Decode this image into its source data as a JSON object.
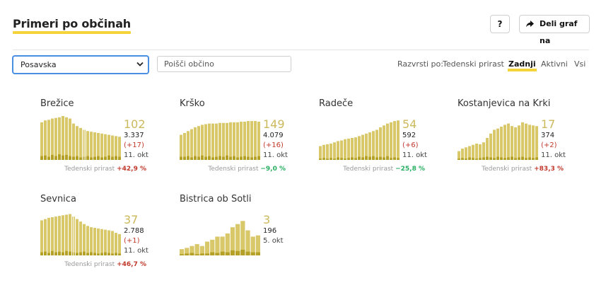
{
  "header": {
    "title": "Primeri po občinah",
    "help_label": "?",
    "share_label": "Deli graf na"
  },
  "filters": {
    "region_selected": "Posavska",
    "search_placeholder": "Poišči občino"
  },
  "sort": {
    "label": "Razvrsti po:",
    "options": [
      "Tedenski prirast",
      "Zadnji",
      "Aktivni",
      "Vsi"
    ],
    "active": "Zadnji"
  },
  "colors": {
    "bar_main": "#d9c86a",
    "bar_daily": "#b3a024",
    "accent": "#f5d33a",
    "positive": "#c0392b",
    "negative": "#27ae60"
  },
  "municipalities": [
    {
      "name": "Brežice",
      "latest": "102",
      "total": "3.337",
      "delta": "(+17)",
      "date": "11. okt",
      "growth_label": "Tedenski prirast",
      "growth": "+42,9 %",
      "growth_sign": "pos",
      "active_series": [
        60,
        63,
        64,
        66,
        67,
        68,
        70,
        68,
        66,
        58,
        54,
        51,
        48,
        46,
        45,
        44,
        43,
        42,
        41,
        40,
        39,
        38,
        37
      ],
      "daily_series": [
        6,
        7,
        5,
        8,
        6,
        9,
        7,
        8,
        6,
        5,
        6,
        4,
        5,
        6,
        4,
        5,
        6,
        4,
        5,
        7,
        5,
        6,
        5
      ],
      "highlight_index": 12
    },
    {
      "name": "Krško",
      "latest": "149",
      "total": "4.079",
      "delta": "(+16)",
      "date": "11. okt",
      "growth_label": "Tedenski prirast",
      "growth": "−9,0 %",
      "growth_sign": "neg",
      "active_series": [
        40,
        43,
        46,
        49,
        52,
        54,
        56,
        57,
        58,
        58,
        58,
        59,
        59,
        59,
        60,
        60,
        60,
        61,
        61,
        62,
        62,
        62,
        61
      ],
      "daily_series": [
        5,
        5,
        6,
        4,
        6,
        5,
        7,
        5,
        6,
        4,
        5,
        6,
        5,
        7,
        5,
        6,
        4,
        5,
        6,
        5,
        4,
        5,
        6
      ],
      "highlight_index": null
    },
    {
      "name": "Radeče",
      "latest": "54",
      "total": "592",
      "delta": "(+6)",
      "date": "11. okt",
      "growth_label": "Tedenski prirast",
      "growth": "−25,8 %",
      "growth_sign": "neg",
      "active_series": [
        22,
        24,
        25,
        26,
        28,
        30,
        31,
        33,
        34,
        35,
        36,
        38,
        40,
        42,
        44,
        46,
        48,
        52,
        55,
        58,
        60,
        62,
        63
      ],
      "daily_series": [
        2,
        3,
        2,
        3,
        2,
        4,
        3,
        2,
        3,
        4,
        3,
        5,
        4,
        6,
        5,
        6,
        4,
        5,
        4,
        6,
        3,
        4,
        3
      ],
      "highlight_index": null
    },
    {
      "name": "Kostanjevica na Krki",
      "latest": "17",
      "total": "374",
      "delta": "(+2)",
      "date": "11. okt",
      "growth_label": "Tedenski prirast",
      "growth": "+83,3 %",
      "growth_sign": "pos",
      "active_series": [
        14,
        18,
        20,
        22,
        24,
        26,
        25,
        28,
        35,
        42,
        48,
        50,
        53,
        56,
        58,
        54,
        52,
        55,
        60,
        58,
        56,
        55,
        54
      ],
      "daily_series": [
        2,
        3,
        2,
        4,
        3,
        2,
        3,
        4,
        5,
        4,
        3,
        5,
        4,
        3,
        4,
        5,
        3,
        4,
        5,
        3,
        4,
        3,
        4
      ],
      "highlight_index": null
    },
    {
      "name": "Sevnica",
      "latest": "37",
      "total": "2.788",
      "delta": "(+1)",
      "date": "11. okt",
      "growth_label": "Tedenski prirast",
      "growth": "+46,7 %",
      "growth_sign": "pos",
      "active_series": [
        56,
        58,
        60,
        61,
        62,
        63,
        64,
        65,
        66,
        62,
        58,
        54,
        50,
        47,
        45,
        44,
        43,
        42,
        41,
        40,
        39,
        36,
        34
      ],
      "daily_series": [
        5,
        6,
        4,
        7,
        5,
        6,
        5,
        7,
        6,
        5,
        4,
        5,
        6,
        4,
        5,
        4,
        3,
        4,
        5,
        4,
        3,
        4,
        3
      ],
      "highlight_index": 9
    },
    {
      "name": "Bistrica ob Sotli",
      "latest": "3",
      "total": "196",
      "delta": "",
      "date": "5. okt",
      "growth_label": "",
      "growth": "",
      "growth_sign": "",
      "active_series": [
        10,
        12,
        15,
        18,
        15,
        22,
        25,
        30,
        30,
        35,
        45,
        50,
        55,
        40,
        30,
        32
      ],
      "daily_series": [
        2,
        3,
        4,
        2,
        3,
        3,
        5,
        4,
        6,
        5,
        8,
        7,
        9,
        6,
        5,
        5
      ],
      "highlight_index": null
    }
  ]
}
